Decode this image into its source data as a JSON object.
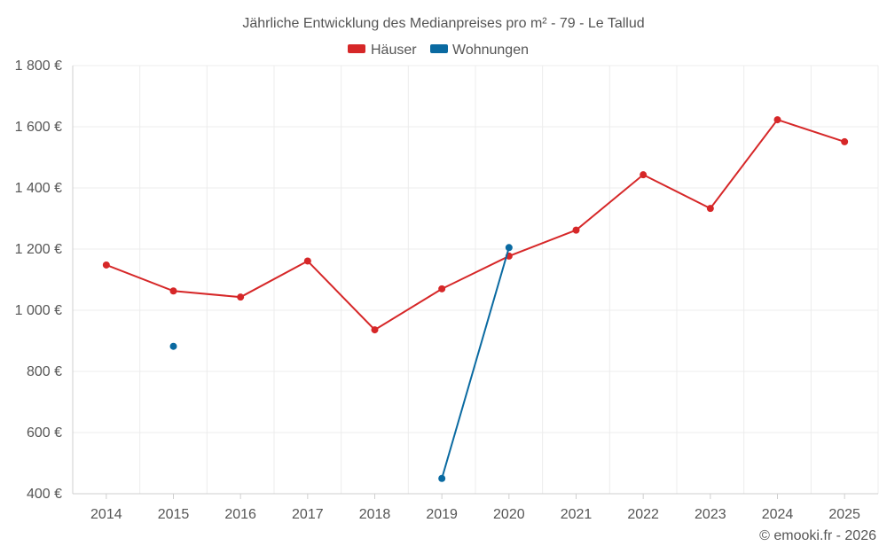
{
  "chart_data": {
    "type": "line",
    "title": "Jährliche Entwicklung des Medianpreises pro m² - 79 - Le Tallud",
    "categories": [
      "2014",
      "2015",
      "2016",
      "2017",
      "2018",
      "2019",
      "2020",
      "2021",
      "2022",
      "2023",
      "2024",
      "2025"
    ],
    "y_ticks": [
      "400 €",
      "600 €",
      "800 €",
      "1 000 €",
      "1 200 €",
      "1 400 €",
      "1 600 €",
      "1 800 €"
    ],
    "y_tick_values": [
      400,
      600,
      800,
      1000,
      1200,
      1400,
      1600,
      1800
    ],
    "ylim": [
      400,
      1800
    ],
    "grid": true,
    "legend_position": "top-center",
    "series": [
      {
        "name": "Häuser",
        "color": "#d62728",
        "values": [
          1148,
          1063,
          1043,
          1161,
          936,
          1070,
          1177,
          1262,
          1443,
          1333,
          1623,
          1551
        ]
      },
      {
        "name": "Wohnungen",
        "color": "#0a6aa1",
        "values": [
          null,
          882,
          null,
          null,
          null,
          450,
          1205,
          null,
          null,
          null,
          null,
          null
        ]
      }
    ]
  },
  "credit": "© emooki.fr - 2026"
}
